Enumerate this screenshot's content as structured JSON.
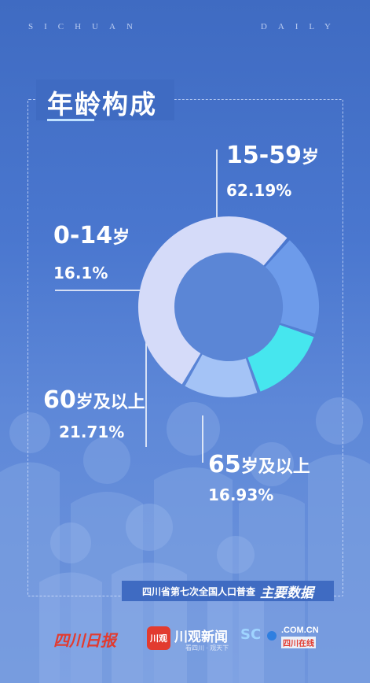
{
  "masthead": {
    "left": "SICHUAN",
    "right": "DAILY"
  },
  "title": "年龄构成",
  "chart_data": {
    "type": "pie",
    "title": "年龄构成",
    "slices": [
      {
        "category": "15-59岁",
        "num": "15-59",
        "unit": "岁",
        "value": 62.19,
        "label": "62.19%",
        "color": "#d5dbf9"
      },
      {
        "category": "60岁及以上",
        "num": "60",
        "unit": "岁及以上",
        "value": 21.71,
        "label": "21.71%",
        "color": "#6d9bea"
      },
      {
        "category": "65岁及以上",
        "num": "65",
        "unit": "岁及以上",
        "value": 16.93,
        "label": "16.93%",
        "color": "#46e6ee"
      },
      {
        "category": "0-14岁",
        "num": "0-14",
        "unit": "岁",
        "value": 16.1,
        "label": "16.1%",
        "color": "#a4c3f6"
      }
    ]
  },
  "footer": {
    "caption": "四川省第七次全国人口普查",
    "emphasis": "主要数据"
  },
  "logos": {
    "paper": "四川日报",
    "app_mark": "川观",
    "app_name": "川观新闻",
    "app_sub": "看四川 · 观天下",
    "web_domain": ".COM.CN",
    "web_sub": "四川在线"
  },
  "colors": {
    "background": "#4a77cf",
    "frame": "#d7e4ff",
    "inner": "#5b86d6",
    "separator": "#4f7fd6"
  }
}
